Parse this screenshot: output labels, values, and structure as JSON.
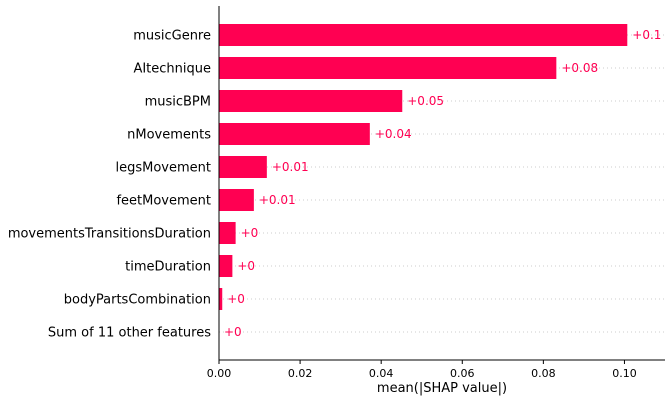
{
  "chart_data": {
    "type": "bar",
    "orientation": "horizontal",
    "categories": [
      "musicGenre",
      "AItechnique",
      "musicBPM",
      "nMovements",
      "legsMovement",
      "feetMovement",
      "movementsTransitionsDuration",
      "timeDuration",
      "bodyPartsCombination",
      "Sum of 11 other features"
    ],
    "values": [
      0.1007,
      0.0832,
      0.0452,
      0.0372,
      0.0118,
      0.0086,
      0.0041,
      0.0033,
      0.0008,
      0.0
    ],
    "value_labels": [
      "+0.1",
      "+0.08",
      "+0.05",
      "+0.04",
      "+0.01",
      "+0.01",
      "+0",
      "+0",
      "+0",
      "+0"
    ],
    "xlabel": "mean(|SHAP value|)",
    "ylabel": "",
    "title": "",
    "xlim": [
      0.0,
      0.11
    ],
    "xticks": [
      0.0,
      0.02,
      0.04,
      0.06,
      0.08,
      0.1
    ],
    "xtick_labels": [
      "0.00",
      "0.02",
      "0.04",
      "0.06",
      "0.08",
      "0.10"
    ],
    "grid": "horizontal dotted row lines",
    "bar_color": "#ff0052",
    "label_color": "#ff0052"
  }
}
